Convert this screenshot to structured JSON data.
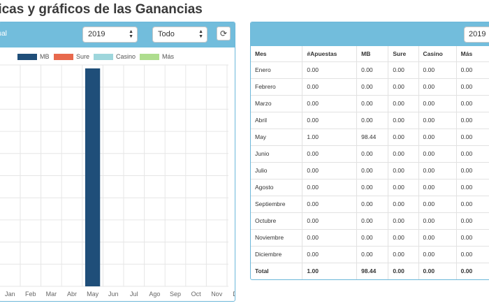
{
  "page": {
    "title": "ticas y gráficos de las Ganancias"
  },
  "left_panel": {
    "mode_label": "nsual",
    "year_select": "2019",
    "type_select": "Todo",
    "refresh_icon": "refresh-icon",
    "header_color": "#72bddc"
  },
  "right_panel": {
    "year_select": "2019",
    "columns": [
      "Mes",
      "#Apuestas",
      "MB",
      "Sure",
      "Casino",
      "Más"
    ],
    "rows": [
      [
        "Enero",
        "0.00",
        "0.00",
        "0.00",
        "0.00",
        "0.00"
      ],
      [
        "Febrero",
        "0.00",
        "0.00",
        "0.00",
        "0.00",
        "0.00"
      ],
      [
        "Marzo",
        "0.00",
        "0.00",
        "0.00",
        "0.00",
        "0.00"
      ],
      [
        "Abril",
        "0.00",
        "0.00",
        "0.00",
        "0.00",
        "0.00"
      ],
      [
        "May",
        "1.00",
        "98.44",
        "0.00",
        "0.00",
        "0.00"
      ],
      [
        "Junio",
        "0.00",
        "0.00",
        "0.00",
        "0.00",
        "0.00"
      ],
      [
        "Julio",
        "0.00",
        "0.00",
        "0.00",
        "0.00",
        "0.00"
      ],
      [
        "Agosto",
        "0.00",
        "0.00",
        "0.00",
        "0.00",
        "0.00"
      ],
      [
        "Septiembre",
        "0.00",
        "0.00",
        "0.00",
        "0.00",
        "0.00"
      ],
      [
        "Octubre",
        "0.00",
        "0.00",
        "0.00",
        "0.00",
        "0.00"
      ],
      [
        "Noviembre",
        "0.00",
        "0.00",
        "0.00",
        "0.00",
        "0.00"
      ],
      [
        "Diciembre",
        "0.00",
        "0.00",
        "0.00",
        "0.00",
        "0.00"
      ]
    ],
    "total": [
      "Total",
      "1.00",
      "98.44",
      "0.00",
      "0.00",
      "0.00"
    ]
  },
  "chart_data": {
    "type": "bar",
    "categories": [
      "Jan",
      "Feb",
      "Mar",
      "Abr",
      "May",
      "Jun",
      "Jul",
      "Ago",
      "Sep",
      "Oct",
      "Nov",
      "Dic"
    ],
    "visible_tick_labels": [
      "Feb",
      "Mar",
      "Abr",
      "May",
      "Jun",
      "Jul",
      "Ago",
      "Sep",
      "Oct",
      "Nov",
      "Dic"
    ],
    "series": [
      {
        "name": "MB",
        "color": "#1f4e79",
        "values": [
          0,
          0,
          0,
          0,
          98.44,
          0,
          0,
          0,
          0,
          0,
          0,
          0
        ]
      },
      {
        "name": "Sure",
        "color": "#e8694d",
        "values": [
          0,
          0,
          0,
          0,
          0,
          0,
          0,
          0,
          0,
          0,
          0,
          0
        ]
      },
      {
        "name": "Casino",
        "color": "#9ed6dc",
        "values": [
          0,
          0,
          0,
          0,
          0,
          0,
          0,
          0,
          0,
          0,
          0,
          0
        ]
      },
      {
        "name": "Más",
        "color": "#aedd8e",
        "values": [
          0,
          0,
          0,
          0,
          0,
          0,
          0,
          0,
          0,
          0,
          0,
          0
        ]
      }
    ],
    "ylim": [
      0,
      100
    ],
    "grid": true,
    "legend_position": "top"
  }
}
